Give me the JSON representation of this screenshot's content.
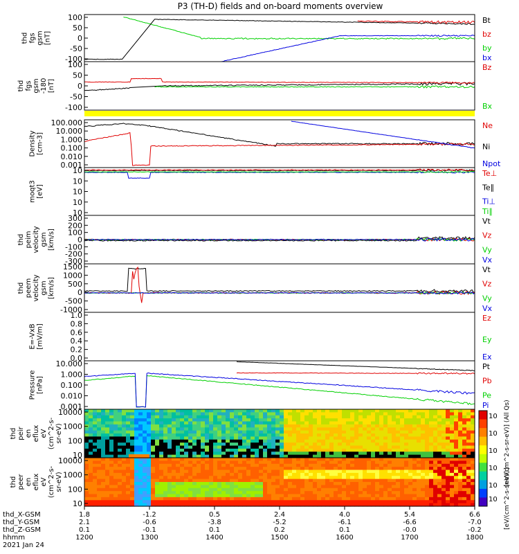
{
  "title": "P3 (TH-D) fields and on-board moments overview",
  "colors": {
    "black": "#000000",
    "red": "#e00000",
    "green": "#00d000",
    "blue": "#0000e0",
    "yellow": "#ffff00"
  },
  "chart_data": [
    {
      "id": "fgs",
      "type": "line",
      "ylabel": [
        "thd",
        "fgs",
        "gsm",
        "[nT]"
      ],
      "yticks": [
        "100",
        "50",
        "0",
        "-50",
        "-100"
      ],
      "ylim": [
        -100,
        100
      ],
      "legend": [
        {
          "name": "Bt",
          "color": "black"
        },
        {
          "name": "bz",
          "color": "red"
        },
        {
          "name": "by",
          "color": "green"
        },
        {
          "name": "bx",
          "color": "blue"
        }
      ]
    },
    {
      "id": "fgs_gse",
      "type": "line",
      "ylabel": [
        "thd",
        "fgs",
        "gsm",
        "-180",
        "[nT]"
      ],
      "yticks": [
        "100",
        "50",
        "0",
        "-50",
        "-100"
      ],
      "ylim": [
        -120,
        120
      ],
      "legend": [
        {
          "name": "Bz",
          "color": "red"
        },
        {
          "name": "Bx",
          "color": "green"
        }
      ]
    },
    {
      "id": "density",
      "type": "line",
      "ylabel": [
        "Density",
        "[cm-3]"
      ],
      "yticks": [
        "100.000",
        "10.000",
        "1.000",
        "0.100",
        "0.010",
        "0.001"
      ],
      "scale": "log",
      "legend": [
        {
          "name": "Ne",
          "color": "red"
        },
        {
          "name": "Ni",
          "color": "black"
        },
        {
          "name": "Npot",
          "color": "blue"
        }
      ]
    },
    {
      "id": "temp",
      "type": "line",
      "ylabel": [
        "moqt3",
        "[eV]"
      ],
      "yticks": [
        "10",
        "10",
        "10",
        "10",
        "10"
      ],
      "scale": "log",
      "legend": [
        {
          "name": "Te⊥",
          "color": "red"
        },
        {
          "name": "Te∥",
          "color": "black"
        },
        {
          "name": "Ti⊥",
          "color": "blue"
        },
        {
          "name": "Ti∥",
          "color": "green"
        }
      ]
    },
    {
      "id": "peim",
      "type": "line",
      "ylabel": [
        "thd",
        "peim",
        "velocity",
        "gsm",
        "[km/s]"
      ],
      "yticks": [
        "300",
        "200",
        "100",
        "0",
        "-100",
        "-200",
        "-300"
      ],
      "ylim": [
        -300,
        300
      ],
      "legend": [
        {
          "name": "Vt",
          "color": "black"
        },
        {
          "name": "Vz",
          "color": "red"
        },
        {
          "name": "Vy",
          "color": "green"
        },
        {
          "name": "Vx",
          "color": "blue"
        }
      ]
    },
    {
      "id": "peem",
      "type": "line",
      "ylabel": [
        "thd",
        "peem",
        "velocity",
        "gsm",
        "[km/s]"
      ],
      "yticks": [
        "1500",
        "1000",
        "500",
        "0",
        "-500",
        "-1000"
      ],
      "ylim": [
        -1000,
        1500
      ],
      "legend": [
        {
          "name": "Vt",
          "color": "black"
        },
        {
          "name": "Vz",
          "color": "red"
        },
        {
          "name": "Vy",
          "color": "green"
        },
        {
          "name": "Vx",
          "color": "blue"
        }
      ]
    },
    {
      "id": "efield",
      "type": "line",
      "ylabel": [
        "E=-VxB",
        "[mV/m]"
      ],
      "yticks": [
        "1.0",
        "0.8",
        "0.6",
        "0.4",
        "0.2",
        "0.0"
      ],
      "ylim": [
        0,
        1
      ],
      "legend": [
        {
          "name": "Ez",
          "color": "red"
        },
        {
          "name": "Ey",
          "color": "green"
        },
        {
          "name": "Ex",
          "color": "blue"
        }
      ]
    },
    {
      "id": "pressure",
      "type": "line",
      "ylabel": [
        "Pressure",
        "[nPa]"
      ],
      "yticks": [
        "10.000",
        "1.000",
        "0.100",
        "0.010",
        "0.001"
      ],
      "scale": "log",
      "legend": [
        {
          "name": "Pt",
          "color": "black"
        },
        {
          "name": "Pb",
          "color": "red"
        },
        {
          "name": "Pe",
          "color": "green"
        },
        {
          "name": "Pi",
          "color": "blue"
        }
      ]
    },
    {
      "id": "peir_spec",
      "type": "heatmap",
      "ylabel": [
        "thd",
        "peir",
        "en",
        "eflux",
        "eV",
        "(cm^2-s-",
        "sr-eV)"
      ],
      "yticks": [
        "10000",
        "1000",
        "100",
        "10"
      ],
      "scale": "log"
    },
    {
      "id": "peer_spec",
      "type": "heatmap",
      "ylabel": [
        "thd",
        "peer",
        "en",
        "eflux",
        "eV",
        "(cm^2-s-",
        "sr-eV)"
      ],
      "yticks": [
        "10000",
        "1000",
        "100",
        "10"
      ],
      "scale": "log"
    }
  ],
  "colorbar": {
    "ticks": [
      "10",
      "10",
      "10",
      "10"
    ],
    "label1": "[eV/(cm^2-s-sr-eV)] (All Qs)",
    "label2": "[eV/(cm^2-s-sr-eV)]"
  },
  "xaxis": {
    "row_labels": [
      "thd_X-GSM",
      "thd_Y-GSM",
      "thd_Z-GSM",
      "hhmm",
      "2021 Jan 24"
    ],
    "columns": [
      {
        "x": "1.8",
        "y": "2.1",
        "z": "0.1",
        "t": "1200"
      },
      {
        "x": "-1.2",
        "y": "-0.6",
        "z": "-0.1",
        "t": "1300"
      },
      {
        "x": "0.5",
        "y": "-3.8",
        "z": "0.1",
        "t": "1400"
      },
      {
        "x": "2.4",
        "y": "-5.2",
        "z": "0.2",
        "t": "1500"
      },
      {
        "x": "4.0",
        "y": "-6.1",
        "z": "0.1",
        "t": "1600"
      },
      {
        "x": "5.4",
        "y": "-6.6",
        "z": "-0.0",
        "t": "1700"
      },
      {
        "x": "6.6",
        "y": "-7.0",
        "z": "-0.2",
        "t": "1800"
      }
    ]
  }
}
